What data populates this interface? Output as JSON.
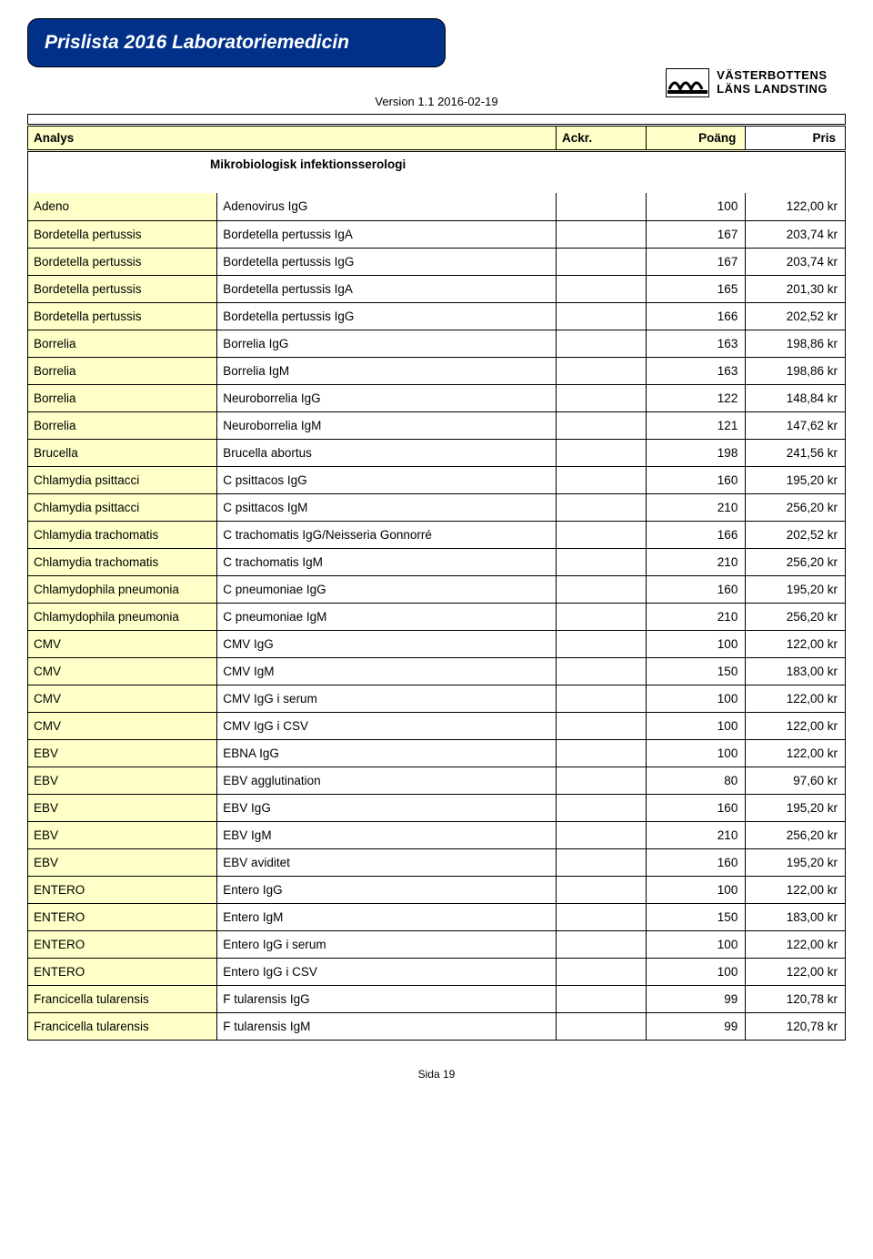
{
  "header": {
    "title": "Prislista 2016 Laboratoriemedicin",
    "version": "Version 1.1 2016-02-19",
    "logo_line1": "VÄSTERBOTTENS",
    "logo_line2": "LÄNS LANDSTING"
  },
  "table_header": {
    "analys": "Analys",
    "ackr": "Ackr.",
    "poang": "Poäng",
    "pris": "Pris"
  },
  "section_title": "Mikrobiologisk infektionsserologi",
  "rows": [
    {
      "group": "Adeno",
      "analys": "Adenovirus IgG",
      "ackr": "",
      "poang": "100",
      "pris": "122,00 kr"
    },
    {
      "group": "Bordetella pertussis",
      "analys": "Bordetella pertussis IgA",
      "ackr": "",
      "poang": "167",
      "pris": "203,74 kr"
    },
    {
      "group": "Bordetella pertussis",
      "analys": "Bordetella pertussis IgG",
      "ackr": "",
      "poang": "167",
      "pris": "203,74 kr"
    },
    {
      "group": "Bordetella pertussis",
      "analys": "Bordetella pertussis IgA",
      "ackr": "",
      "poang": "165",
      "pris": "201,30 kr"
    },
    {
      "group": "Bordetella pertussis",
      "analys": "Bordetella pertussis IgG",
      "ackr": "",
      "poang": "166",
      "pris": "202,52 kr"
    },
    {
      "group": "Borrelia",
      "analys": "Borrelia IgG",
      "ackr": "",
      "poang": "163",
      "pris": "198,86 kr"
    },
    {
      "group": "Borrelia",
      "analys": "Borrelia IgM",
      "ackr": "",
      "poang": "163",
      "pris": "198,86 kr"
    },
    {
      "group": "Borrelia",
      "analys": "Neuroborrelia IgG",
      "ackr": "",
      "poang": "122",
      "pris": "148,84 kr"
    },
    {
      "group": "Borrelia",
      "analys": "Neuroborrelia IgM",
      "ackr": "",
      "poang": "121",
      "pris": "147,62 kr"
    },
    {
      "group": "Brucella",
      "analys": "Brucella abortus",
      "ackr": "",
      "poang": "198",
      "pris": "241,56 kr"
    },
    {
      "group": "Chlamydia psittacci",
      "analys": "C psittacos IgG",
      "ackr": "",
      "poang": "160",
      "pris": "195,20 kr"
    },
    {
      "group": "Chlamydia psittacci",
      "analys": "C psittacos IgM",
      "ackr": "",
      "poang": "210",
      "pris": "256,20 kr"
    },
    {
      "group": "Chlamydia trachomatis",
      "analys": "C trachomatis IgG/Neisseria Gonnorré",
      "ackr": "",
      "poang": "166",
      "pris": "202,52 kr"
    },
    {
      "group": "Chlamydia trachomatis",
      "analys": "C trachomatis IgM",
      "ackr": "",
      "poang": "210",
      "pris": "256,20 kr"
    },
    {
      "group": "Chlamydophila pneumonia",
      "analys": "C pneumoniae IgG",
      "ackr": "",
      "poang": "160",
      "pris": "195,20 kr"
    },
    {
      "group": "Chlamydophila pneumonia",
      "analys": "C pneumoniae IgM",
      "ackr": "",
      "poang": "210",
      "pris": "256,20 kr"
    },
    {
      "group": "CMV",
      "analys": "CMV IgG",
      "ackr": "",
      "poang": "100",
      "pris": "122,00 kr"
    },
    {
      "group": "CMV",
      "analys": "CMV IgM",
      "ackr": "",
      "poang": "150",
      "pris": "183,00 kr"
    },
    {
      "group": "CMV",
      "analys": "CMV IgG i serum",
      "ackr": "",
      "poang": "100",
      "pris": "122,00 kr"
    },
    {
      "group": "CMV",
      "analys": "CMV IgG i CSV",
      "ackr": "",
      "poang": "100",
      "pris": "122,00 kr"
    },
    {
      "group": "EBV",
      "analys": "EBNA IgG",
      "ackr": "",
      "poang": "100",
      "pris": "122,00 kr"
    },
    {
      "group": "EBV",
      "analys": "EBV agglutination",
      "ackr": "",
      "poang": "80",
      "pris": "97,60 kr"
    },
    {
      "group": "EBV",
      "analys": "EBV IgG",
      "ackr": "",
      "poang": "160",
      "pris": "195,20 kr"
    },
    {
      "group": "EBV",
      "analys": "EBV IgM",
      "ackr": "",
      "poang": "210",
      "pris": "256,20 kr"
    },
    {
      "group": "EBV",
      "analys": "EBV aviditet",
      "ackr": "",
      "poang": "160",
      "pris": "195,20 kr"
    },
    {
      "group": "ENTERO",
      "analys": "Entero IgG",
      "ackr": "",
      "poang": "100",
      "pris": "122,00 kr"
    },
    {
      "group": "ENTERO",
      "analys": "Entero IgM",
      "ackr": "",
      "poang": "150",
      "pris": "183,00 kr"
    },
    {
      "group": "ENTERO",
      "analys": "Entero IgG i serum",
      "ackr": "",
      "poang": "100",
      "pris": "122,00 kr"
    },
    {
      "group": "ENTERO",
      "analys": "Entero IgG i CSV",
      "ackr": "",
      "poang": "100",
      "pris": "122,00 kr"
    },
    {
      "group": "Francicella tularensis",
      "analys": "F tularensis IgG",
      "ackr": "",
      "poang": "99",
      "pris": "120,78 kr"
    },
    {
      "group": "Francicella tularensis",
      "analys": "F tularensis IgM",
      "ackr": "",
      "poang": "99",
      "pris": "120,78 kr"
    }
  ],
  "footer": "Sida 19",
  "colors": {
    "header_bg": "#003087",
    "highlight": "#ffffc8",
    "border": "#000000",
    "text": "#000000"
  },
  "typography": {
    "body_fontsize": 13.5,
    "title_fontsize": 21
  }
}
